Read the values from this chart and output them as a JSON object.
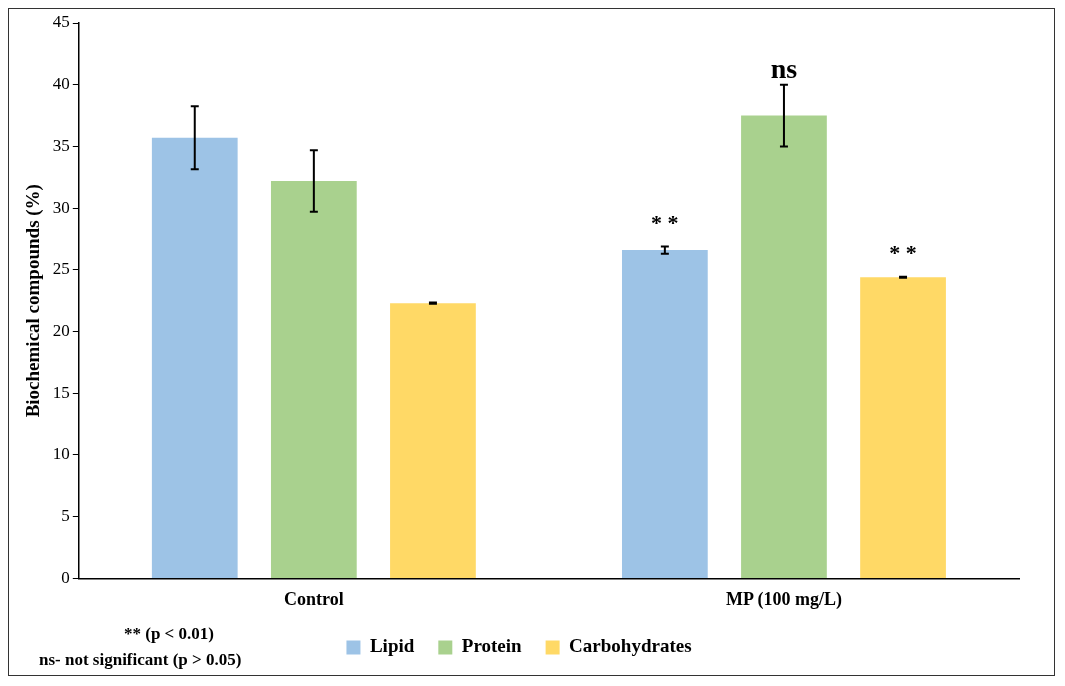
{
  "chart_data": {
    "type": "bar",
    "ylabel": "Biochemical compounds (%)",
    "categories": [
      "Control",
      "MP (100 mg/L)"
    ],
    "series": [
      {
        "name": "Lipid",
        "color": "#9dc3e6",
        "values": [
          35.7,
          26.6
        ],
        "errors": [
          2.55,
          0.3
        ]
      },
      {
        "name": "Protein",
        "color": "#a9d18e",
        "values": [
          32.2,
          37.5
        ],
        "errors": [
          2.5,
          2.5
        ]
      },
      {
        "name": "Carbohydrates",
        "color": "#ffd966",
        "values": [
          22.3,
          24.4
        ],
        "errors": [
          0.05,
          0.05
        ]
      }
    ],
    "ylim": [
      0,
      45
    ],
    "yticks": [
      0,
      5,
      10,
      15,
      20,
      25,
      30,
      35,
      40,
      45
    ],
    "grid": false,
    "legend": "bottom",
    "annotations": [
      "* *",
      "ns",
      "* *",
      "** (p < 0.01)",
      "ns- not significant (p > 0.05)"
    ]
  }
}
